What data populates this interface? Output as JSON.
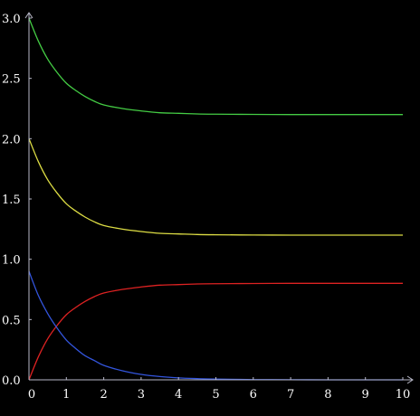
{
  "chart_data": {
    "type": "line",
    "title": "",
    "xlabel": "",
    "ylabel": "",
    "xlim": [
      0,
      10
    ],
    "ylim": [
      0,
      3
    ],
    "grid": false,
    "legend": "none",
    "x_ticks": [
      "0",
      "1",
      "2",
      "3",
      "4",
      "5",
      "6",
      "7",
      "8",
      "9",
      "10"
    ],
    "y_ticks": [
      "0.0",
      "0.5",
      "1.0",
      "1.5",
      "2.0",
      "2.5",
      "3.0"
    ],
    "x_tick_values": [
      0,
      1,
      2,
      3,
      4,
      5,
      6,
      7,
      8,
      9,
      10
    ],
    "y_tick_values": [
      0,
      0.5,
      1.0,
      1.5,
      2.0,
      2.5,
      3.0
    ],
    "series": [
      {
        "color": "#44cc44",
        "x": [
          0,
          0.25,
          0.5,
          0.75,
          1,
          1.25,
          1.5,
          1.75,
          2,
          2.5,
          3,
          3.5,
          4,
          4.5,
          5,
          6,
          7,
          8,
          9,
          10
        ],
        "values": [
          3.0,
          2.81,
          2.66,
          2.55,
          2.46,
          2.4,
          2.35,
          2.31,
          2.28,
          2.25,
          2.23,
          2.215,
          2.21,
          2.205,
          2.203,
          2.201,
          2.2,
          2.2,
          2.2,
          2.2
        ]
      },
      {
        "color": "#dddd44",
        "x": [
          0,
          0.25,
          0.5,
          0.75,
          1,
          1.25,
          1.5,
          1.75,
          2,
          2.5,
          3,
          3.5,
          4,
          4.5,
          5,
          6,
          7,
          8,
          9,
          10
        ],
        "values": [
          2.0,
          1.81,
          1.66,
          1.55,
          1.46,
          1.4,
          1.35,
          1.31,
          1.28,
          1.25,
          1.23,
          1.215,
          1.21,
          1.205,
          1.203,
          1.201,
          1.2,
          1.2,
          1.2,
          1.2
        ]
      },
      {
        "color": "#dd2222",
        "x": [
          0,
          0.25,
          0.5,
          0.75,
          1,
          1.25,
          1.5,
          1.75,
          2,
          2.5,
          3,
          3.5,
          4,
          4.5,
          5,
          6,
          7,
          8,
          9,
          10
        ],
        "values": [
          0.0,
          0.19,
          0.34,
          0.45,
          0.54,
          0.6,
          0.65,
          0.69,
          0.72,
          0.75,
          0.77,
          0.785,
          0.79,
          0.795,
          0.797,
          0.799,
          0.8,
          0.8,
          0.8,
          0.8
        ]
      },
      {
        "color": "#3355dd",
        "x": [
          0,
          0.25,
          0.5,
          0.75,
          1,
          1.25,
          1.5,
          1.75,
          2,
          2.5,
          3,
          3.5,
          4,
          4.5,
          5,
          6,
          7,
          8,
          9,
          10
        ],
        "values": [
          0.9,
          0.7,
          0.55,
          0.43,
          0.33,
          0.26,
          0.2,
          0.16,
          0.12,
          0.075,
          0.045,
          0.027,
          0.016,
          0.01,
          0.006,
          0.002,
          0.001,
          0.0,
          0.0,
          0.0
        ]
      }
    ]
  }
}
